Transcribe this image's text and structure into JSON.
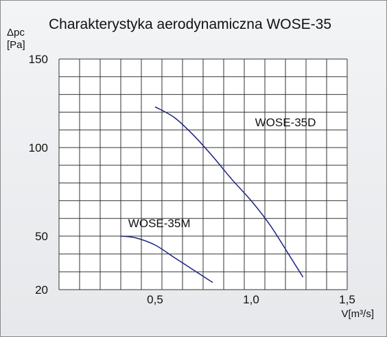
{
  "chart_data": {
    "type": "line",
    "title": "Charakterystyka aerodynamiczna WOSE-35",
    "ylabel_line1": "Δpc",
    "ylabel_line2": "[Pa]",
    "xlabel": "V[m³/s]",
    "xlim": [
      0,
      1.5
    ],
    "ylim": [
      20,
      150
    ],
    "x_ticks": [
      0.5,
      1.0,
      1.5
    ],
    "x_tick_labels": [
      "0,5",
      "1,0",
      "1,5"
    ],
    "y_ticks": [
      20,
      50,
      100,
      150
    ],
    "y_tick_labels": [
      "20",
      "50",
      "100",
      "150"
    ],
    "grid": true,
    "series": [
      {
        "name": "WOSE-35D",
        "x": [
          0.5,
          0.6,
          0.7,
          0.8,
          0.9,
          1.0,
          1.1,
          1.2,
          1.27
        ],
        "y": [
          123,
          117,
          107,
          95,
          82,
          70,
          56,
          39,
          27
        ],
        "color": "#1a237e"
      },
      {
        "name": "WOSE-35M",
        "x": [
          0.32,
          0.4,
          0.5,
          0.6,
          0.7,
          0.8
        ],
        "y": [
          50,
          49,
          45,
          38,
          31,
          24
        ],
        "color": "#1a237e"
      }
    ]
  }
}
